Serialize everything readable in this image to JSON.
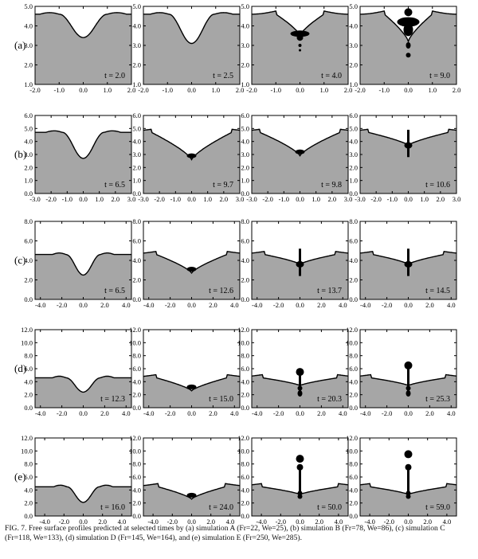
{
  "figure": {
    "rows": [
      {
        "label": "(a)",
        "xticks": [
          "-2.0",
          "-1.0",
          "0.0",
          "1.0",
          "2.0"
        ],
        "xrange": [
          -2,
          2
        ],
        "yticks": [
          "1.0",
          "2.0",
          "3.0",
          "4.0",
          "5.0"
        ],
        "yrange": [
          1,
          5
        ],
        "surface": 4.6,
        "panels": [
          {
            "time": "t = 2.0",
            "kind": "dip",
            "depth": 3.4,
            "width": 1.0
          },
          {
            "time": "t = 2.5",
            "kind": "dip",
            "depth": 3.1,
            "width": 0.95
          },
          {
            "time": "t = 4.0",
            "kind": "bubble",
            "depth": 3.5,
            "width": 1.0
          },
          {
            "time": "t = 9.0",
            "kind": "bubble2",
            "depth": 3.2,
            "width": 1.0
          }
        ]
      },
      {
        "label": "(b)",
        "xticks": [
          "-3.0",
          "-2.0",
          "-1.0",
          "0.0",
          "1.0",
          "2.0",
          "3.0"
        ],
        "xrange": [
          -3,
          3
        ],
        "yticks": [
          "0.0",
          "1.0",
          "2.0",
          "3.0",
          "4.0",
          "5.0",
          "6.0"
        ],
        "yrange": [
          0,
          6
        ],
        "surface": 4.7,
        "panels": [
          {
            "time": "t = 6.5",
            "kind": "dip",
            "depth": 2.7,
            "width": 1.3
          },
          {
            "time": "t = 9.7",
            "kind": "vee",
            "depth": 2.6,
            "width": 2.5
          },
          {
            "time": "t = 9.8",
            "kind": "vee",
            "depth": 2.9,
            "width": 2.5
          },
          {
            "time": "t = 10.6",
            "kind": "jet",
            "depth": 3.7,
            "width": 2.5
          }
        ]
      },
      {
        "label": "(c)",
        "xticks": [
          "-4.0",
          "-2.0",
          "0.0",
          "2.0",
          "4.0"
        ],
        "xrange": [
          -4.5,
          4.5
        ],
        "yticks": [
          "0.0",
          "2.0",
          "4.0",
          "6.0",
          "8.0"
        ],
        "yrange": [
          0,
          8
        ],
        "surface": 4.6,
        "panels": [
          {
            "time": "t = 6.5",
            "kind": "dip",
            "depth": 2.5,
            "width": 1.6
          },
          {
            "time": "t = 12.6",
            "kind": "vee",
            "depth": 2.7,
            "width": 3.3
          },
          {
            "time": "t = 13.7",
            "kind": "jet",
            "depth": 3.6,
            "width": 3.3
          },
          {
            "time": "t = 14.5",
            "kind": "jet",
            "depth": 3.6,
            "width": 3.3
          }
        ]
      },
      {
        "label": "(d)",
        "xticks": [
          "-4.0",
          "-2.0",
          "0.0",
          "2.0",
          "4.0"
        ],
        "xrange": [
          -4.5,
          4.5
        ],
        "yticks": [
          "0.0",
          "2.0",
          "4.0",
          "6.0",
          "8.0",
          "10.0",
          "12.0"
        ],
        "yrange": [
          0,
          12
        ],
        "surface": 4.6,
        "panels": [
          {
            "time": "t = 12.3",
            "kind": "dip",
            "depth": 2.4,
            "width": 1.6
          },
          {
            "time": "t = 15.0",
            "kind": "vee",
            "depth": 2.6,
            "width": 3.3
          },
          {
            "time": "t = 20.3",
            "kind": "tallJet",
            "depth": 3.4,
            "width": 3.5
          },
          {
            "time": "t = 25.3",
            "kind": "tallJet2",
            "depth": 3.4,
            "width": 3.5
          }
        ]
      },
      {
        "label": "(e)",
        "xticks": [
          "-4.0",
          "-2.0",
          "0.0",
          "2.0",
          "4.0"
        ],
        "xrange": [
          -5,
          5
        ],
        "yticks": [
          "0.0",
          "2.0",
          "4.0",
          "6.0",
          "8.0",
          "10.0",
          "12.0"
        ],
        "yrange": [
          0,
          12
        ],
        "surface": 4.5,
        "panels": [
          {
            "time": "t = 16.0",
            "kind": "dip",
            "depth": 2.1,
            "width": 1.7
          },
          {
            "time": "t = 24.0",
            "kind": "vee",
            "depth": 2.6,
            "width": 3.5
          },
          {
            "time": "t = 50.0",
            "kind": "tallJet3",
            "depth": 3.3,
            "width": 4.0
          },
          {
            "time": "t = 59.0",
            "kind": "tallJet4",
            "depth": 3.3,
            "width": 4.0
          }
        ]
      }
    ]
  },
  "caption": "FIG. 7. Free surface profiles predicted at selected times by (a) simulation A (Fr=22, We=25), (b) simulation B (Fr=78, We=86), (c) simulation C (Fr=118, We=133), (d) simulation D (Fr=145, We=164), and (e) simulation E (Fr=250, We=285).",
  "colors": {
    "liquid": "#a6a6a6",
    "interface": "#000000",
    "frame": "#000000"
  }
}
